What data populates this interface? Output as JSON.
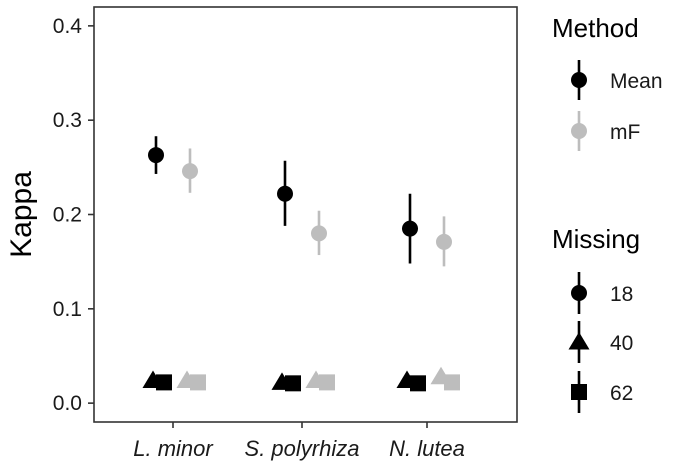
{
  "chart_data": {
    "type": "scatter",
    "ylabel": "Kappa",
    "xlabel": "",
    "categories": [
      "L. minor",
      "S. polyrhiza",
      "N. lutea"
    ],
    "yticks": [
      "0.0",
      "0.1",
      "0.2",
      "0.3",
      "0.4"
    ],
    "ylim": [
      -0.02,
      0.42
    ],
    "grid": false,
    "colors": {
      "Mean": "#000000",
      "mF": "#bdbdbd"
    },
    "legend": {
      "placement": "right",
      "method": {
        "title": "Method",
        "items": [
          {
            "label": "Mean",
            "color": "#000000"
          },
          {
            "label": "mF",
            "color": "#bdbdbd"
          }
        ]
      },
      "missing": {
        "title": "Missing",
        "items": [
          {
            "label": "18",
            "shape": "circle"
          },
          {
            "label": "40",
            "shape": "triangle"
          },
          {
            "label": "62",
            "shape": "square"
          }
        ]
      }
    },
    "series": [
      {
        "method": "Mean",
        "missing": "18",
        "shape": "circle",
        "color": "#000000",
        "values": [
          0.263,
          0.222,
          0.185
        ],
        "lower": [
          0.243,
          0.188,
          0.148
        ],
        "upper": [
          0.283,
          0.257,
          0.222
        ]
      },
      {
        "method": "mF",
        "missing": "18",
        "shape": "circle",
        "color": "#bdbdbd",
        "values": [
          0.246,
          0.18,
          0.171
        ],
        "lower": [
          0.223,
          0.157,
          0.145
        ],
        "upper": [
          0.27,
          0.204,
          0.198
        ]
      },
      {
        "method": "Mean",
        "missing": "40",
        "shape": "triangle",
        "color": "#000000",
        "values": [
          0.024,
          0.022,
          0.024
        ],
        "lower": [
          0.024,
          0.022,
          0.024
        ],
        "upper": [
          0.024,
          0.022,
          0.024
        ]
      },
      {
        "method": "mF",
        "missing": "40",
        "shape": "triangle",
        "color": "#bdbdbd",
        "values": [
          0.024,
          0.024,
          0.028
        ],
        "lower": [
          0.024,
          0.024,
          0.028
        ],
        "upper": [
          0.024,
          0.024,
          0.028
        ]
      },
      {
        "method": "Mean",
        "missing": "62",
        "shape": "square",
        "color": "#000000",
        "values": [
          0.022,
          0.021,
          0.021
        ],
        "lower": [
          0.022,
          0.021,
          0.021
        ],
        "upper": [
          0.022,
          0.021,
          0.021
        ]
      },
      {
        "method": "mF",
        "missing": "62",
        "shape": "square",
        "color": "#bdbdbd",
        "values": [
          0.022,
          0.022,
          0.022
        ],
        "lower": [
          0.022,
          0.022,
          0.022
        ],
        "upper": [
          0.022,
          0.022,
          0.022
        ]
      }
    ]
  }
}
